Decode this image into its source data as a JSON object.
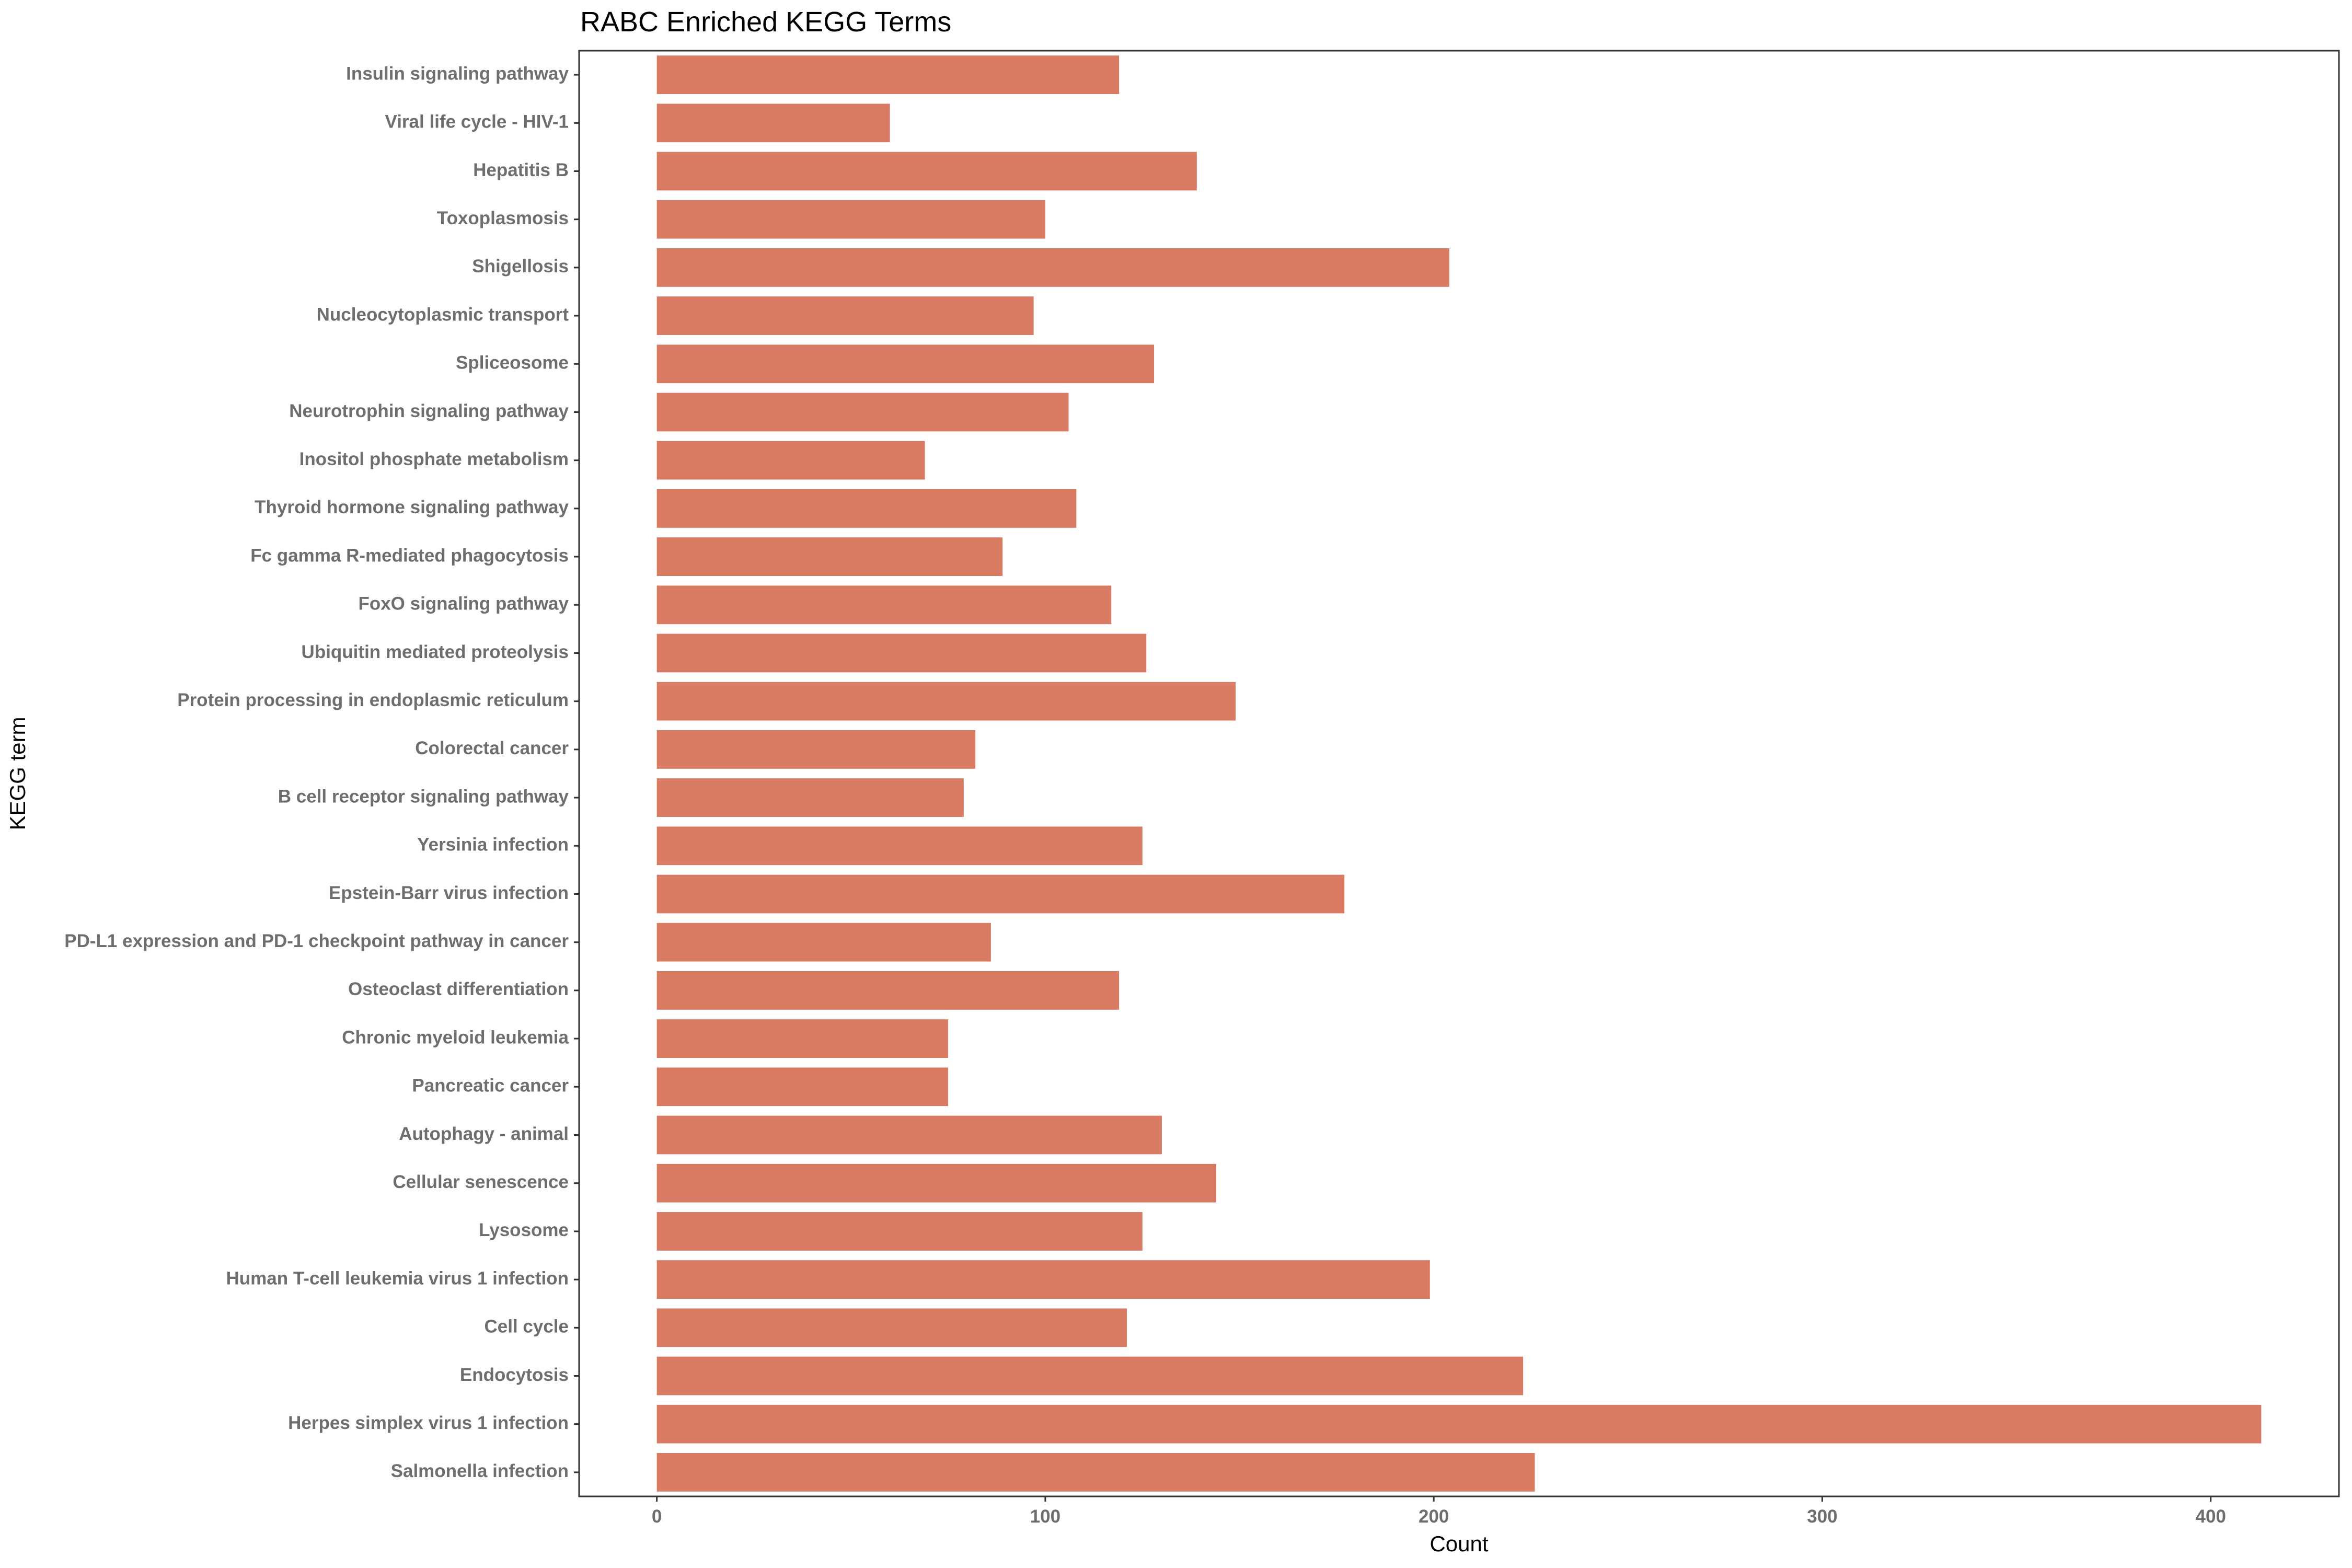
{
  "chart_data": {
    "type": "bar",
    "orientation": "horizontal",
    "title": "RABC Enriched KEGG Terms",
    "xlabel": "Count",
    "ylabel": "KEGG term",
    "xlim": [
      -20,
      433
    ],
    "x_ticks": [
      0,
      100,
      200,
      300,
      400
    ],
    "grid": false,
    "bar_color": "#d97a62",
    "categories": [
      "Insulin signaling pathway",
      "Viral life cycle - HIV-1",
      "Hepatitis B",
      "Toxoplasmosis",
      "Shigellosis",
      "Nucleocytoplasmic transport",
      "Spliceosome",
      "Neurotrophin signaling pathway",
      "Inositol phosphate metabolism",
      "Thyroid hormone signaling pathway",
      "Fc gamma R-mediated phagocytosis",
      "FoxO signaling pathway",
      "Ubiquitin mediated proteolysis",
      "Protein processing in endoplasmic reticulum",
      "Colorectal cancer",
      "B cell receptor signaling pathway",
      "Yersinia infection",
      "Epstein-Barr virus infection",
      "PD-L1 expression and PD-1 checkpoint pathway in cancer",
      "Osteoclast differentiation",
      "Chronic myeloid leukemia",
      "Pancreatic cancer",
      "Autophagy - animal",
      "Cellular senescence",
      "Lysosome",
      "Human T-cell leukemia virus 1 infection",
      "Cell cycle",
      "Endocytosis",
      "Herpes simplex virus 1 infection",
      "Salmonella infection"
    ],
    "values": [
      119,
      60,
      139,
      100,
      204,
      97,
      128,
      106,
      69,
      108,
      89,
      117,
      126,
      149,
      82,
      79,
      125,
      177,
      86,
      119,
      75,
      75,
      130,
      144,
      125,
      199,
      121,
      223,
      413,
      226
    ]
  }
}
